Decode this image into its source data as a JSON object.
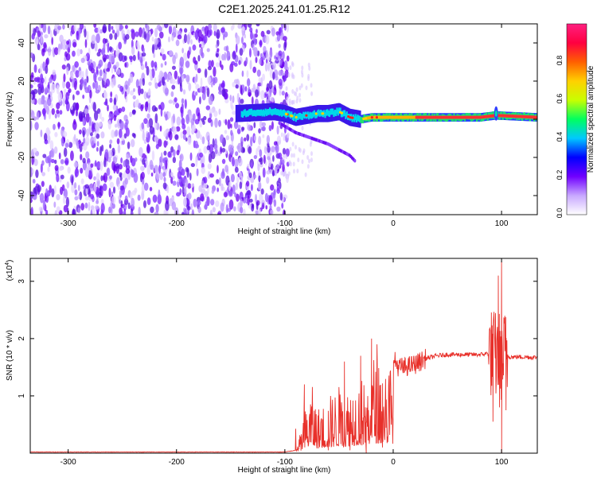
{
  "page_title": "C2E1.2025.241.01.25.R12",
  "chart_data": [
    {
      "type": "heatmap",
      "title": "C2E1.2025.241.01.25.R12",
      "xlabel": "Height of straight line (km)",
      "ylabel": "Frequency (Hz)",
      "xlim": [
        -335,
        133
      ],
      "ylim": [
        -50,
        50
      ],
      "x_ticks": [
        -300,
        -200,
        -100,
        0,
        100
      ],
      "y_ticks": [
        -40,
        -20,
        0,
        20,
        40
      ],
      "colorbar": {
        "label": "Normalized spectral amplitude",
        "range": [
          0,
          1
        ],
        "ticks": [
          "0.0",
          "0.2",
          "0.4",
          "0.6",
          "0.8"
        ],
        "tick_values": [
          0.0,
          0.2,
          0.4,
          0.6,
          0.8
        ],
        "colormap": [
          "#ffffff",
          "#c8a8ff",
          "#7000ff",
          "#0000ff",
          "#00c8ff",
          "#00ff60",
          "#c8ff00",
          "#ffd000",
          "#ff6000",
          "#ff0040",
          "#ff2080"
        ]
      },
      "features": {
        "noise_region_x": [
          -335,
          -105
        ],
        "main_ridge": [
          [
            -145,
            3
          ],
          [
            -110,
            4
          ],
          [
            -100,
            3
          ],
          [
            -90,
            1
          ],
          [
            -80,
            2
          ],
          [
            -70,
            3
          ],
          [
            -60,
            3
          ],
          [
            -50,
            4
          ],
          [
            -40,
            1
          ],
          [
            -30,
            0
          ],
          [
            -20,
            1
          ],
          [
            -10,
            1
          ],
          [
            0,
            1
          ],
          [
            20,
            1
          ],
          [
            40,
            1
          ],
          [
            60,
            1
          ],
          [
            80,
            1
          ],
          [
            95,
            2
          ],
          [
            133,
            1
          ]
        ],
        "descending_branch": [
          [
            -105,
            -2
          ],
          [
            -90,
            -7
          ],
          [
            -75,
            -10
          ],
          [
            -60,
            -13
          ],
          [
            -50,
            -16
          ],
          [
            -40,
            -19
          ],
          [
            -35,
            -22
          ]
        ]
      }
    },
    {
      "type": "line",
      "xlabel": "Height of straight line (km)",
      "ylabel": "SNR (10 * v/v)",
      "y_multiplier": "(x10",
      "y_multiplier_exp": "4",
      "xlim": [
        -335,
        133
      ],
      "ylim": [
        0,
        3.4
      ],
      "x_ticks": [
        -300,
        -200,
        -100,
        0,
        100
      ],
      "y_ticks": [
        1,
        2,
        3
      ],
      "series": [
        {
          "color": "#e8302a",
          "envelope": [
            [
              -335,
              0.02
            ],
            [
              -100,
              0.02
            ],
            [
              -90,
              0.05
            ],
            [
              -85,
              0.4
            ],
            [
              -80,
              0.9
            ],
            [
              -75,
              1.2
            ],
            [
              -70,
              0.8
            ],
            [
              -60,
              1.0
            ],
            [
              -50,
              1.2
            ],
            [
              -45,
              1.0
            ],
            [
              -40,
              1.3
            ],
            [
              -30,
              1.4
            ],
            [
              -25,
              1.2
            ],
            [
              -20,
              1.8
            ],
            [
              -10,
              1.7
            ],
            [
              0,
              1.65
            ],
            [
              5,
              1.5
            ],
            [
              10,
              1.5
            ],
            [
              20,
              1.55
            ],
            [
              30,
              1.65
            ],
            [
              40,
              1.7
            ],
            [
              50,
              1.72
            ],
            [
              60,
              1.72
            ],
            [
              70,
              1.72
            ],
            [
              80,
              1.72
            ],
            [
              90,
              1.75
            ],
            [
              95,
              1.7
            ],
            [
              100,
              1.7
            ],
            [
              110,
              1.68
            ],
            [
              120,
              1.68
            ],
            [
              133,
              1.67
            ]
          ],
          "spikes": [
            [
              -82,
              1.2
            ],
            [
              -75,
              0.7
            ],
            [
              -45,
              1.6
            ],
            [
              -30,
              1.7
            ],
            [
              -20,
              2.0
            ],
            [
              -15,
              1.9
            ],
            [
              93,
              2.45
            ],
            [
              97,
              3.1
            ],
            [
              100,
              3.35
            ],
            [
              103,
              2.4
            ]
          ],
          "dips": [
            [
              -60,
              0.05
            ],
            [
              -40,
              0.05
            ],
            [
              -25,
              0.0
            ],
            [
              -10,
              0.1
            ],
            [
              0,
              0.9
            ],
            [
              10,
              1.4
            ],
            [
              92,
              0.55
            ],
            [
              98,
              0.8
            ],
            [
              100,
              0.0
            ],
            [
              104,
              0.75
            ]
          ]
        }
      ]
    }
  ]
}
